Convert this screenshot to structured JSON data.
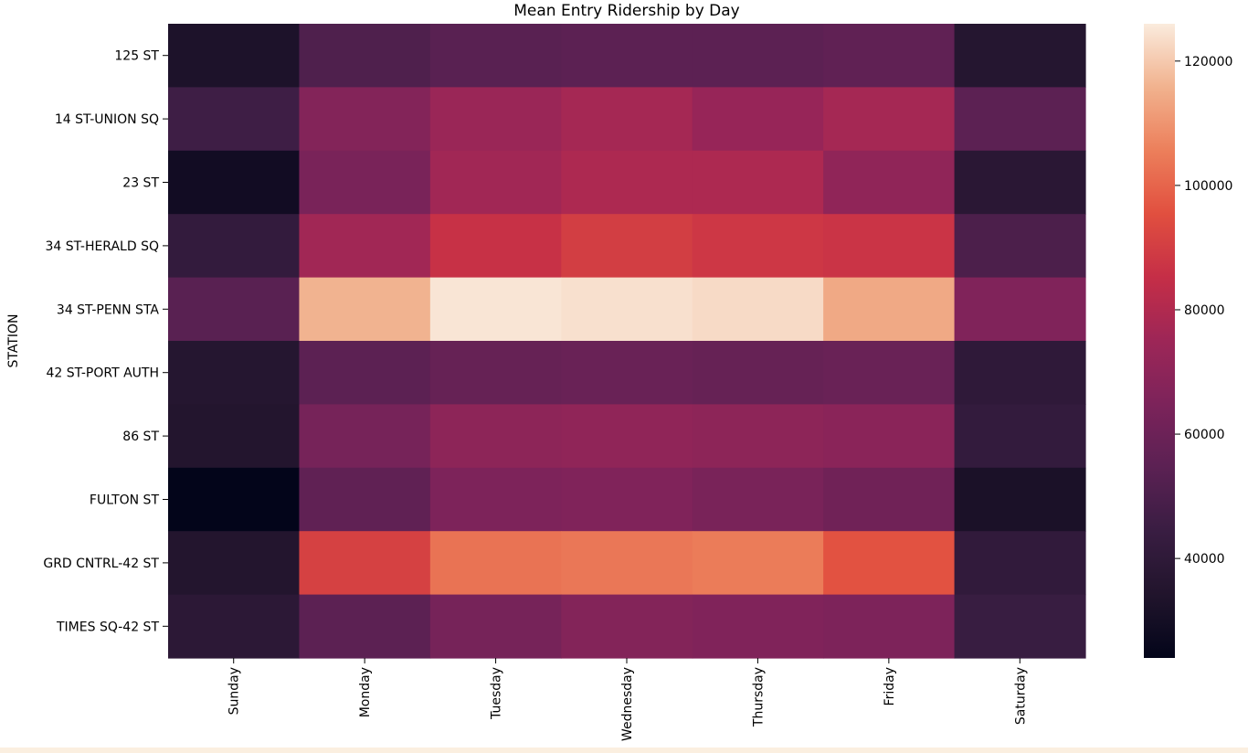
{
  "chart_data": {
    "type": "heatmap",
    "title": "Mean Entry Ridership by Day",
    "ylabel": "STATION",
    "xlabel": "",
    "x_categories": [
      "Sunday",
      "Monday",
      "Tuesday",
      "Wednesday",
      "Thursday",
      "Friday",
      "Saturday"
    ],
    "y_categories": [
      "125 ST",
      "14 ST-UNION SQ",
      "23 ST",
      "34 ST-HERALD SQ",
      "34 ST-PENN STA",
      "42 ST-PORT AUTH",
      "86 ST",
      "FULTON ST",
      "GRD CNTRL-42 ST",
      "TIMES SQ-42 ST"
    ],
    "values": [
      [
        33000,
        51000,
        54000,
        55000,
        55000,
        56000,
        36000
      ],
      [
        46000,
        67000,
        74000,
        77000,
        73000,
        77000,
        55000
      ],
      [
        29000,
        64000,
        76000,
        79000,
        79000,
        71000,
        38000
      ],
      [
        42000,
        76000,
        86000,
        90000,
        88000,
        87000,
        50000
      ],
      [
        54000,
        116000,
        125000,
        124000,
        123000,
        114000,
        66000
      ],
      [
        36000,
        55000,
        58000,
        59000,
        58000,
        59000,
        40000
      ],
      [
        35000,
        63000,
        70000,
        71000,
        70000,
        69000,
        42000
      ],
      [
        24000,
        56000,
        65000,
        66000,
        64000,
        61000,
        32000
      ],
      [
        35000,
        91000,
        103000,
        104000,
        105000,
        96000,
        41000
      ],
      [
        39000,
        55000,
        63000,
        67000,
        66000,
        65000,
        44000
      ]
    ],
    "colorbar": {
      "vmin": 24000,
      "vmax": 126000,
      "ticks": [
        40000,
        60000,
        80000,
        100000,
        120000
      ],
      "tick_labels": [
        "40000",
        "60000",
        "80000",
        "100000",
        "120000"
      ]
    },
    "colormap": "rocket",
    "grid": false,
    "legend": "colorbar-right"
  }
}
